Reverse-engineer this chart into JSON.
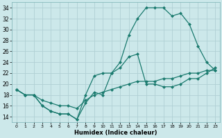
{
  "xlabel": "Humidex (Indice chaleur)",
  "bg_color": "#cce8ea",
  "grid_color": "#b0d0d4",
  "line_color": "#1a7a6e",
  "xlim": [
    -0.5,
    23.5
  ],
  "ylim": [
    13,
    35
  ],
  "xticks": [
    0,
    1,
    2,
    3,
    4,
    5,
    6,
    7,
    8,
    9,
    10,
    11,
    12,
    13,
    14,
    15,
    16,
    17,
    18,
    19,
    20,
    21,
    22,
    23
  ],
  "yticks": [
    14,
    16,
    18,
    20,
    22,
    24,
    26,
    28,
    30,
    32,
    34
  ],
  "line_top_x": [
    0,
    1,
    2,
    3,
    4,
    5,
    6,
    7,
    8,
    9,
    10,
    11,
    12,
    13,
    14,
    15,
    16,
    17,
    18,
    19,
    20,
    21,
    22,
    23
  ],
  "line_top_y": [
    19,
    18,
    18,
    16,
    15,
    14.5,
    14.5,
    13.5,
    16.5,
    18.5,
    18,
    22,
    24,
    29,
    32,
    34,
    34,
    34,
    32.5,
    33,
    31,
    27,
    24,
    22.5
  ],
  "line_mid_x": [
    0,
    1,
    2,
    3,
    4,
    5,
    6,
    7,
    8,
    9,
    10,
    11,
    12,
    13,
    14,
    15,
    16,
    17,
    18,
    19,
    20,
    21,
    22,
    23
  ],
  "line_mid_y": [
    19,
    18,
    18,
    17,
    16.5,
    16,
    16,
    15.5,
    17,
    18,
    18.5,
    19,
    19.5,
    20,
    20.5,
    20.5,
    20.5,
    21,
    21,
    21.5,
    22,
    22,
    22.5,
    22.5
  ],
  "line_bot_x": [
    0,
    1,
    2,
    3,
    4,
    5,
    6,
    7,
    8,
    9,
    10,
    11,
    12,
    13,
    14,
    15,
    16,
    17,
    18,
    19,
    20,
    21,
    22,
    23
  ],
  "line_bot_y": [
    19,
    18,
    18,
    16,
    15,
    14.5,
    14.5,
    13.5,
    18,
    21.5,
    22,
    22,
    23,
    25,
    25.5,
    20,
    20,
    19.5,
    19.5,
    20,
    21,
    21,
    22,
    23
  ]
}
